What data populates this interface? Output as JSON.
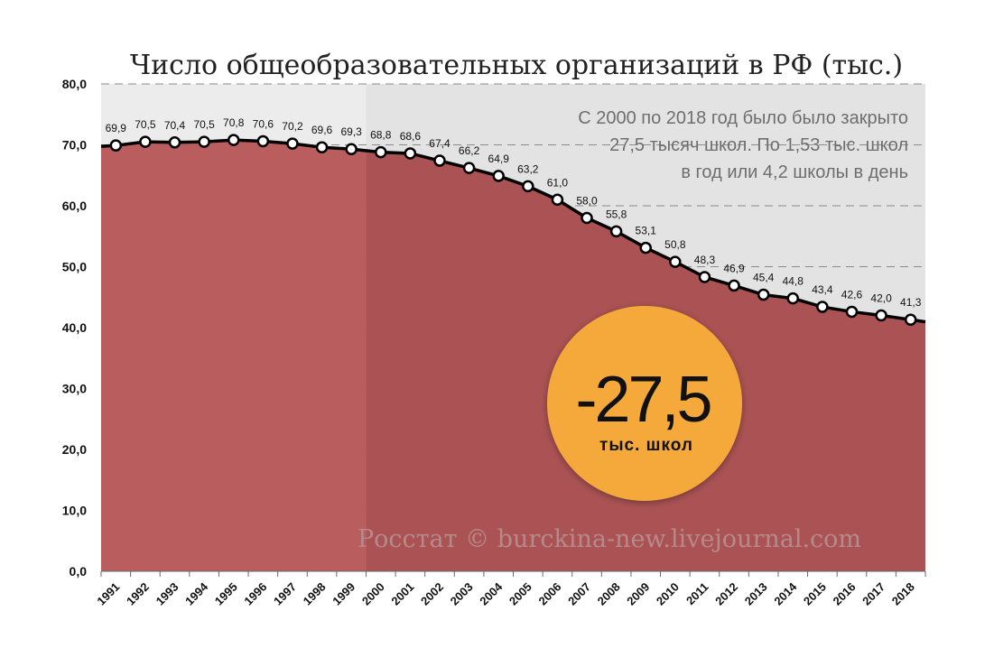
{
  "chart_data": {
    "type": "area",
    "title": "Число общеобразовательных организаций в РФ (тыс.)",
    "xlabel": "",
    "ylabel": "",
    "ylim": [
      0,
      80
    ],
    "yticks": [
      "0,0",
      "10,0",
      "20,0",
      "30,0",
      "40,0",
      "50,0",
      "60,0",
      "70,0",
      "80,0"
    ],
    "grid": true,
    "categories": [
      "1991",
      "1992",
      "1993",
      "1994",
      "1995",
      "1996",
      "1997",
      "1998",
      "1999",
      "2000",
      "2001",
      "2002",
      "2003",
      "2004",
      "2005",
      "2006",
      "2007",
      "2008",
      "2009",
      "2010",
      "2011",
      "2012",
      "2013",
      "2014",
      "2015",
      "2016",
      "2017",
      "2018"
    ],
    "values": [
      69.9,
      70.5,
      70.4,
      70.5,
      70.8,
      70.6,
      70.2,
      69.6,
      69.3,
      68.8,
      68.6,
      67.4,
      66.2,
      64.9,
      63.2,
      61.0,
      58.0,
      55.8,
      53.1,
      50.8,
      48.3,
      46.9,
      45.4,
      44.8,
      43.4,
      42.6,
      42.0,
      41.3
    ],
    "value_labels": [
      "69,9",
      "70,5",
      "70,4",
      "70,5",
      "70,8",
      "70,6",
      "70,2",
      "69,6",
      "69,3",
      "68,8",
      "68,6",
      "67,4",
      "66,2",
      "64,9",
      "63,2",
      "61,0",
      "58,0",
      "55,8",
      "53,1",
      "50,8",
      "48,3",
      "46,9",
      "45,4",
      "44,8",
      "43,4",
      "42,6",
      "42,0",
      "41,3"
    ],
    "highlight_from": "2000",
    "annotation_lines": [
      "С 2000 по 2018 год было было закрыто",
      "27,5 тысяч школ. По 1,53 тыс. школ",
      "в год или 4,2 школы в день"
    ],
    "badge": {
      "value": "-27,5",
      "unit": "тыс. школ"
    },
    "source": "Росстат © burckina-new.livejournal.com",
    "colors": {
      "area_left": "#b95d5e",
      "area_right": "#ab5354",
      "plot_bg_left": "#ececec",
      "plot_bg_right": "#e3e3e3",
      "line": "#000000",
      "badge": "#f5a93a"
    }
  }
}
